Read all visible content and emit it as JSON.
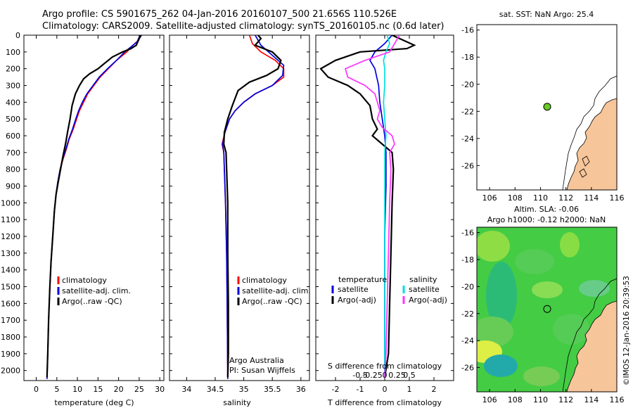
{
  "header": {
    "line1": "Argo profile: CS 5901675_262 04-Jan-2016 20160107_500 21.656S 110.526E",
    "line2": "Climatology: CARS2009. Satellite-adjusted climatology: synTS_20160105.nc (0.6d later)"
  },
  "side_stamp": "©IMOS 12-Jan-2016 20:39:53",
  "colors": {
    "climatology": "#ff0000",
    "satellite": "#0000dd",
    "argo": "#000000",
    "salinity_satellite": "#00e0e0",
    "salinity_argo": "#ff33ff",
    "land": "#f7c59a",
    "argo_marker": "#66cc22"
  },
  "chart_data": [
    {
      "id": "temperature",
      "type": "line",
      "xlabel": "temperature (deg C)",
      "ylabel": "",
      "xlim": [
        -3,
        31
      ],
      "ylim": [
        2060,
        0
      ],
      "xticks": [
        0,
        5,
        10,
        15,
        20,
        25,
        30
      ],
      "yticks": [
        0,
        100,
        200,
        300,
        400,
        500,
        600,
        700,
        800,
        900,
        1000,
        1100,
        1200,
        1300,
        1400,
        1500,
        1600,
        1700,
        1800,
        1900,
        2000
      ],
      "legend": [
        "climatology",
        "satellite-adj. clim.",
        "Argo(..raw -QC)"
      ],
      "series": [
        {
          "name": "climatology",
          "color": "#ff0000",
          "points": [
            [
              25.3,
              0
            ],
            [
              24.8,
              30
            ],
            [
              23.5,
              60
            ],
            [
              22,
              100
            ],
            [
              19.5,
              150
            ],
            [
              17.5,
              200
            ],
            [
              15.5,
              250
            ],
            [
              14,
              300
            ],
            [
              12.5,
              350
            ],
            [
              11.5,
              400
            ],
            [
              10.5,
              450
            ],
            [
              9.8,
              500
            ],
            [
              9,
              560
            ],
            [
              8,
              620
            ],
            [
              7.3,
              680
            ],
            [
              6.5,
              740
            ],
            [
              5.8,
              800
            ],
            [
              5.2,
              880
            ],
            [
              4.8,
              950
            ],
            [
              4.4,
              1050
            ],
            [
              4,
              1200
            ],
            [
              3.6,
              1350
            ],
            [
              3.3,
              1500
            ],
            [
              3,
              1700
            ],
            [
              2.8,
              1900
            ],
            [
              2.6,
              2050
            ]
          ]
        },
        {
          "name": "satellite",
          "color": "#0000dd",
          "points": [
            [
              25.2,
              0
            ],
            [
              24.5,
              40
            ],
            [
              23,
              70
            ],
            [
              21.5,
              100
            ],
            [
              19.5,
              150
            ],
            [
              17.3,
              200
            ],
            [
              15.3,
              250
            ],
            [
              13.8,
              300
            ],
            [
              12.3,
              350
            ],
            [
              11.2,
              400
            ],
            [
              10.3,
              450
            ],
            [
              9.6,
              500
            ],
            [
              8.8,
              560
            ],
            [
              7.9,
              620
            ],
            [
              7.2,
              680
            ],
            [
              6.4,
              740
            ],
            [
              5.8,
              800
            ],
            [
              5.2,
              880
            ],
            [
              4.8,
              950
            ],
            [
              4.4,
              1050
            ],
            [
              4,
              1200
            ],
            [
              3.6,
              1350
            ],
            [
              3.3,
              1500
            ],
            [
              3,
              1700
            ],
            [
              2.8,
              1900
            ],
            [
              2.6,
              2050
            ]
          ]
        },
        {
          "name": "Argo(..raw -QC)",
          "color": "#000000",
          "points": [
            [
              25.5,
              0
            ],
            [
              25,
              20
            ],
            [
              24.3,
              60
            ],
            [
              23,
              80
            ],
            [
              21,
              100
            ],
            [
              18.5,
              130
            ],
            [
              16.5,
              170
            ],
            [
              15,
              200
            ],
            [
              13,
              230
            ],
            [
              11.5,
              260
            ],
            [
              10.5,
              300
            ],
            [
              9.5,
              350
            ],
            [
              8.7,
              420
            ],
            [
              8.2,
              500
            ],
            [
              7.6,
              580
            ],
            [
              7.1,
              650
            ],
            [
              6.5,
              720
            ],
            [
              5.9,
              800
            ],
            [
              5.3,
              880
            ],
            [
              4.8,
              950
            ],
            [
              4.4,
              1050
            ],
            [
              4,
              1200
            ],
            [
              3.6,
              1350
            ],
            [
              3.3,
              1500
            ],
            [
              3,
              1700
            ],
            [
              2.8,
              1900
            ],
            [
              2.6,
              2040
            ]
          ]
        }
      ]
    },
    {
      "id": "salinity",
      "type": "line",
      "xlabel": "salinity",
      "xlim": [
        33.7,
        36.15
      ],
      "ylim": [
        2060,
        0
      ],
      "xticks": [
        34,
        34.5,
        35,
        35.5,
        36
      ],
      "legend": [
        "climatology",
        "satellite-adj. clim.",
        "Argo(..raw -QC)"
      ],
      "annotation": [
        "Argo Australia",
        "PI: Susan Wijffels"
      ],
      "series": [
        {
          "name": "climatology",
          "color": "#ff0000",
          "points": [
            [
              35.1,
              0
            ],
            [
              35.15,
              50
            ],
            [
              35.3,
              100
            ],
            [
              35.55,
              150
            ],
            [
              35.7,
              200
            ],
            [
              35.7,
              250
            ],
            [
              35.5,
              300
            ],
            [
              35.2,
              350
            ],
            [
              35,
              400
            ],
            [
              34.85,
              450
            ],
            [
              34.75,
              500
            ],
            [
              34.67,
              580
            ],
            [
              34.62,
              650
            ],
            [
              34.65,
              700
            ],
            [
              34.66,
              800
            ],
            [
              34.68,
              1000
            ],
            [
              34.7,
              1300
            ],
            [
              34.71,
              1600
            ],
            [
              34.72,
              2050
            ]
          ]
        },
        {
          "name": "satellite",
          "color": "#0000dd",
          "points": [
            [
              35.2,
              0
            ],
            [
              35.3,
              60
            ],
            [
              35.5,
              120
            ],
            [
              35.7,
              180
            ],
            [
              35.68,
              240
            ],
            [
              35.5,
              300
            ],
            [
              35.2,
              350
            ],
            [
              35,
              400
            ],
            [
              34.85,
              450
            ],
            [
              34.75,
              500
            ],
            [
              34.67,
              580
            ],
            [
              34.63,
              650
            ],
            [
              34.65,
              700
            ],
            [
              34.66,
              800
            ],
            [
              34.68,
              1000
            ],
            [
              34.7,
              1300
            ],
            [
              34.71,
              1600
            ],
            [
              34.72,
              2050
            ]
          ]
        },
        {
          "name": "Argo(..raw -QC)",
          "color": "#000000",
          "points": [
            [
              35.25,
              0
            ],
            [
              35.3,
              20
            ],
            [
              35.2,
              60
            ],
            [
              35.5,
              100
            ],
            [
              35.65,
              150
            ],
            [
              35.6,
              200
            ],
            [
              35.4,
              240
            ],
            [
              35.1,
              280
            ],
            [
              34.9,
              330
            ],
            [
              34.8,
              420
            ],
            [
              34.72,
              500
            ],
            [
              34.66,
              580
            ],
            [
              34.65,
              650
            ],
            [
              34.69,
              700
            ],
            [
              34.7,
              800
            ],
            [
              34.72,
              1000
            ],
            [
              34.72,
              1300
            ],
            [
              34.73,
              1600
            ],
            [
              34.73,
              1900
            ],
            [
              34.72,
              2040
            ]
          ]
        }
      ]
    },
    {
      "id": "difference",
      "type": "line",
      "xlabel": "T difference from climatology",
      "top_label": "S difference from climatology",
      "xlim": [
        -2.8,
        2.8
      ],
      "ylim": [
        2060,
        0
      ],
      "xticks": [
        -2,
        -1,
        0,
        1,
        2
      ],
      "top_tick_labels": [
        "-0.5",
        "-0.25",
        "0",
        "0.25",
        "0.5"
      ],
      "legend_headers": [
        "temperature",
        "salinity"
      ],
      "legend": [
        "satellite",
        "Argo(-adj)",
        "satellite",
        "Argo(-adj)"
      ],
      "series": [
        {
          "name": "temperature satellite",
          "color": "#0000dd",
          "points": [
            [
              0.3,
              0
            ],
            [
              0,
              50
            ],
            [
              -0.4,
              100
            ],
            [
              -0.6,
              150
            ],
            [
              -0.4,
              200
            ],
            [
              -0.25,
              300
            ],
            [
              -0.2,
              400
            ],
            [
              -0.1,
              500
            ],
            [
              0,
              600
            ],
            [
              0.05,
              700
            ],
            [
              0.05,
              900
            ],
            [
              0,
              1200
            ],
            [
              0,
              1500
            ],
            [
              0,
              1800
            ],
            [
              0,
              2040
            ]
          ]
        },
        {
          "name": "temperature Argo(-adj)",
          "color": "#000000",
          "points": [
            [
              0.3,
              0
            ],
            [
              1.2,
              60
            ],
            [
              0.9,
              80
            ],
            [
              -1,
              100
            ],
            [
              -2,
              150
            ],
            [
              -2.6,
              200
            ],
            [
              -2.3,
              250
            ],
            [
              -1.5,
              300
            ],
            [
              -1,
              350
            ],
            [
              -0.6,
              420
            ],
            [
              -0.5,
              500
            ],
            [
              -0.3,
              560
            ],
            [
              -0.5,
              600
            ],
            [
              -0.1,
              650
            ],
            [
              0.3,
              700
            ],
            [
              0.35,
              800
            ],
            [
              0.3,
              1000
            ],
            [
              0.25,
              1300
            ],
            [
              0.2,
              1600
            ],
            [
              0.15,
              1900
            ],
            [
              0,
              2040
            ]
          ]
        },
        {
          "name": "salinity satellite",
          "color": "#00e0e0",
          "points": [
            [
              0.1,
              0
            ],
            [
              0.2,
              50
            ],
            [
              0.05,
              100
            ],
            [
              -0.05,
              150
            ],
            [
              0,
              200
            ],
            [
              0,
              300
            ],
            [
              -0.05,
              400
            ],
            [
              0,
              500
            ],
            [
              0.05,
              600
            ],
            [
              0,
              700
            ],
            [
              0,
              900
            ],
            [
              0,
              1100
            ],
            [
              0,
              1400
            ],
            [
              0,
              1700
            ],
            [
              0,
              2040
            ]
          ]
        },
        {
          "name": "salinity Argo(-adj)",
          "color": "#ff33ff",
          "points": [
            [
              0.6,
              0
            ],
            [
              0.4,
              50
            ],
            [
              0.2,
              100
            ],
            [
              -0.8,
              150
            ],
            [
              -1.6,
              200
            ],
            [
              -1.5,
              250
            ],
            [
              -0.8,
              300
            ],
            [
              -0.4,
              350
            ],
            [
              -0.3,
              400
            ],
            [
              -0.2,
              450
            ],
            [
              -0.3,
              500
            ],
            [
              -0.1,
              550
            ],
            [
              0.3,
              600
            ],
            [
              0.4,
              650
            ],
            [
              0.2,
              700
            ],
            [
              0.25,
              800
            ],
            [
              0.2,
              1000
            ],
            [
              0.15,
              1300
            ],
            [
              0.1,
              1600
            ],
            [
              0.05,
              1900
            ],
            [
              0,
              2040
            ]
          ]
        }
      ]
    },
    {
      "id": "sst_map",
      "type": "map",
      "title": "sat. SST: NaN Argo: 25.4",
      "xlim": [
        105,
        116
      ],
      "ylim": [
        -27.8,
        -15.6
      ],
      "xticks": [
        106,
        108,
        110,
        112,
        114,
        116
      ],
      "yticks": [
        -16,
        -18,
        -20,
        -22,
        -24,
        -26
      ],
      "argo_position": [
        110.526,
        -21.656
      ]
    },
    {
      "id": "sla_map",
      "type": "heatmap",
      "title_line1": "Altim. SLA: -0.06",
      "title_line2": "Argo h1000: -0.12 h2000: NaN",
      "xlim": [
        105,
        116
      ],
      "ylim": [
        -27.8,
        -15.6
      ],
      "xticks": [
        106,
        108,
        110,
        112,
        114,
        116
      ],
      "yticks": [
        -16,
        -18,
        -20,
        -22,
        -24,
        -26
      ],
      "argo_position": [
        110.526,
        -21.656
      ]
    }
  ]
}
